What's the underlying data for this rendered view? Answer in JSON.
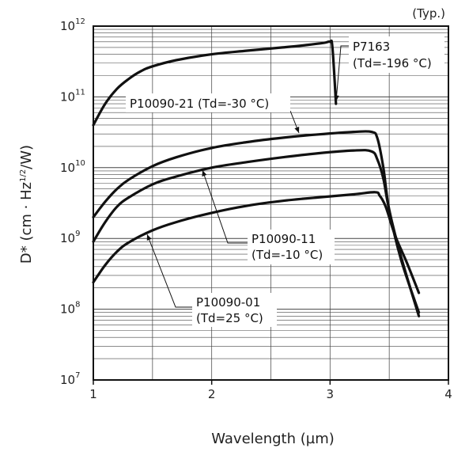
{
  "chart_data": {
    "type": "line",
    "title": "",
    "note": "(Typ.)",
    "xlabel": "Wavelength (µm)",
    "ylabel_main": "D* (cm · Hz",
    "ylabel_sup": "1/2",
    "ylabel_end": "/W)",
    "xlim": [
      1,
      4
    ],
    "ylim": [
      10000000,
      1000000000000
    ],
    "yscale": "log",
    "grid": true,
    "x_ticks": [
      "1",
      "2",
      "3",
      "4"
    ],
    "y_ticks": [
      {
        "base": "10",
        "exp": "7"
      },
      {
        "base": "10",
        "exp": "8"
      },
      {
        "base": "10",
        "exp": "9"
      },
      {
        "base": "10",
        "exp": "10"
      },
      {
        "base": "10",
        "exp": "11"
      },
      {
        "base": "10",
        "exp": "12"
      }
    ],
    "series": [
      {
        "name": "P7163 (Td=-196 °C)",
        "label_lines": [
          "P7163",
          "(Td=-196 °C)"
        ],
        "x": [
          1.0,
          1.1,
          1.2,
          1.3,
          1.4,
          1.5,
          1.7,
          2.0,
          2.3,
          2.6,
          2.8,
          2.95,
          3.0,
          3.02,
          3.05
        ],
        "y": [
          40000000000,
          80000000000,
          130000000000,
          180000000000,
          230000000000,
          270000000000,
          330000000000,
          400000000000,
          450000000000,
          500000000000,
          540000000000,
          580000000000,
          600000000000,
          500000000000,
          80000000000
        ]
      },
      {
        "name": "P10090-21 (Td=-30 °C)",
        "label_lines": [
          "P10090-21 (Td=-30 °C)"
        ],
        "x": [
          1.0,
          1.1,
          1.2,
          1.3,
          1.5,
          1.7,
          2.0,
          2.3,
          2.6,
          2.9,
          3.2,
          3.35,
          3.4,
          3.45,
          3.5,
          3.6,
          3.75
        ],
        "y": [
          2000000000,
          3300000000,
          5000000000,
          6800000000,
          10500000000,
          14000000000,
          19000000000,
          23000000000,
          26500000000,
          29500000000,
          32000000000,
          32000000000,
          26000000000,
          10000000000,
          2500000000,
          500000000,
          90000000
        ]
      },
      {
        "name": "P10090-11 (Td=-10 °C)",
        "label_lines": [
          "P10090-11",
          "(Td=-10 °C)"
        ],
        "x": [
          1.0,
          1.1,
          1.2,
          1.3,
          1.5,
          1.7,
          2.0,
          2.3,
          2.6,
          2.9,
          3.2,
          3.35,
          3.4,
          3.45,
          3.5,
          3.6,
          3.75
        ],
        "y": [
          900000000,
          1700000000,
          2800000000,
          3800000000,
          5800000000,
          7500000000,
          10000000000,
          12000000000,
          14000000000,
          16000000000,
          17500000000,
          17000000000,
          13000000000,
          7000000000,
          2500000000,
          550000000,
          80000000
        ]
      },
      {
        "name": "P10090-01 (Td=25 °C)",
        "label_lines": [
          "P10090-01",
          "(Td=25 °C)"
        ],
        "x": [
          1.0,
          1.1,
          1.2,
          1.3,
          1.5,
          1.7,
          2.0,
          2.3,
          2.6,
          2.9,
          3.2,
          3.38,
          3.42,
          3.47,
          3.55,
          3.65,
          3.75
        ],
        "y": [
          240000000,
          420000000,
          650000000,
          880000000,
          1300000000,
          1700000000,
          2300000000,
          2900000000,
          3400000000,
          3800000000,
          4200000000,
          4500000000,
          4000000000,
          2800000000,
          1100000000,
          450000000,
          170000000
        ]
      }
    ]
  }
}
